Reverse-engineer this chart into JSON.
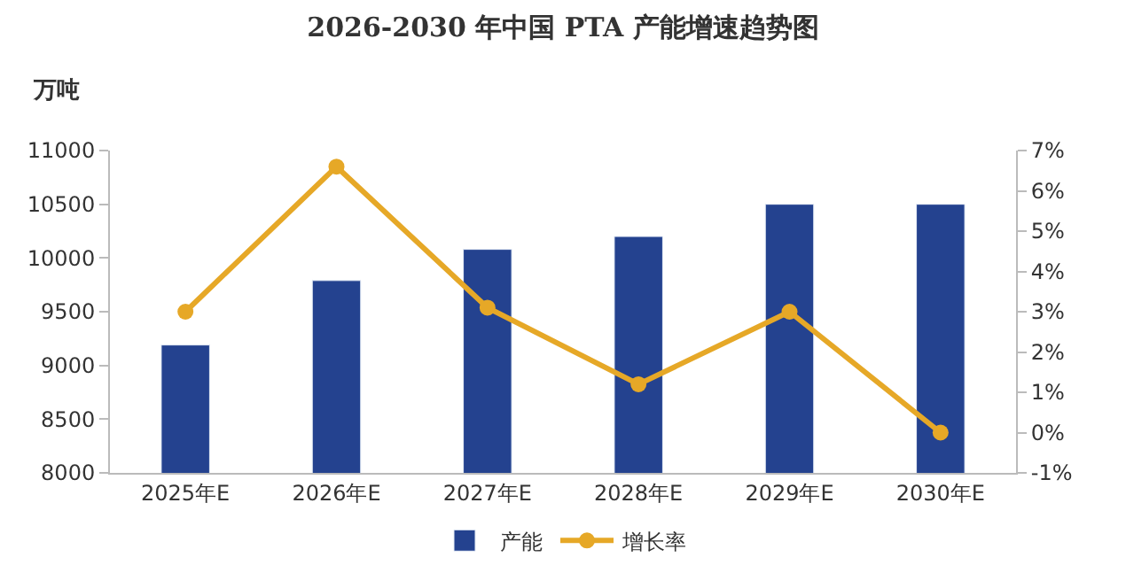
{
  "chart_data": {
    "type": "bar",
    "title": "2026-2030 年中国 PTA 产能增速趋势图",
    "ylabel": "万吨",
    "categories": [
      "2025年E",
      "2026年E",
      "2027年E",
      "2028年E",
      "2029年E",
      "2030年E"
    ],
    "series": [
      {
        "name": "产能",
        "color": "#24428f",
        "values": [
          9190,
          9790,
          10080,
          10200,
          10500,
          10500
        ]
      },
      {
        "name": "增长率",
        "type": "line",
        "axis": "y2",
        "color": "#e6a827",
        "marker": "circle",
        "values": [
          3.0,
          6.6,
          3.1,
          1.2,
          3.0,
          0.0
        ]
      }
    ],
    "ylim": [
      8000,
      11000
    ],
    "yticks": [
      8000,
      8500,
      9000,
      9500,
      10000,
      10500,
      11000
    ],
    "y2lim": [
      -1,
      7
    ],
    "y2ticks": [
      {
        "value": -1,
        "label": "-1%"
      },
      {
        "value": 0,
        "label": "0%"
      },
      {
        "value": 1,
        "label": "1%"
      },
      {
        "value": 2,
        "label": "2%"
      },
      {
        "value": 3,
        "label": "3%"
      },
      {
        "value": 4,
        "label": "4%"
      },
      {
        "value": 5,
        "label": "5%"
      },
      {
        "value": 6,
        "label": "6%"
      },
      {
        "value": 7,
        "label": "7%"
      }
    ],
    "legend": "bottom"
  }
}
